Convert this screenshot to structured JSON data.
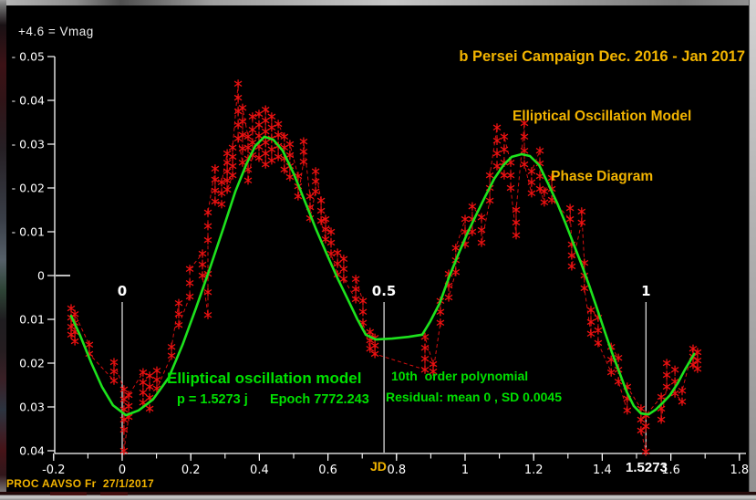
{
  "header": {
    "vmag_note": "+4.6 = Vmag",
    "title1": "b Persei Campaign Dec. 2016 - Jan 2017",
    "title2": "Elliptical Oscillation Model",
    "title3": "Phase Diagram"
  },
  "annotations": {
    "model_title": "Elliptical oscillation model",
    "model_params": "p = 1.5273 j      Epoch 7772.243",
    "poly_title": "10th  order polynomial",
    "poly_residual": "Residual: mean 0 , SD 0.0045"
  },
  "footer": {
    "credit": "PROC AAVSO Fr  27/1/2017"
  },
  "colors": {
    "background": "#000000",
    "title_gold": "#f2b400",
    "annotation_green": "#00e000",
    "model_green": "#1de31d",
    "data_red": "#ee1111",
    "axis_white": "#ffffff"
  },
  "chart_data": {
    "type": "scatter",
    "title": "b Persei Campaign Dec. 2016 - Jan 2017 — Elliptical Oscillation Model — Phase Diagram",
    "xlabel": "JD",
    "ylabel_note": "+4.6 = Vmag",
    "xlim": [
      -0.28,
      1.82
    ],
    "ylim_dmag_top_to_bottom": [
      -0.05,
      0.04
    ],
    "x_minor_step": 0.1,
    "period_label": "1.5273",
    "x_major_ticks": [
      {
        "v": -0.2,
        "label": "-0.2"
      },
      {
        "v": 0,
        "label": "0"
      },
      {
        "v": 0.2,
        "label": "0.2"
      },
      {
        "v": 0.4,
        "label": "0.4"
      },
      {
        "v": 0.6,
        "label": "0.6"
      },
      {
        "v": 0.8,
        "label": "0.8"
      },
      {
        "v": 1,
        "label": "1"
      },
      {
        "v": 1.2,
        "label": "1.2"
      },
      {
        "v": 1.4,
        "label": "1.4"
      },
      {
        "v": 1.6,
        "label": "1.6"
      },
      {
        "v": 1.8,
        "label": "1.8"
      }
    ],
    "y_ticks": [
      {
        "v": -0.05,
        "label": "- 0.05"
      },
      {
        "v": -0.04,
        "label": "- 0.04"
      },
      {
        "v": -0.03,
        "label": "- 0.03"
      },
      {
        "v": -0.02,
        "label": "- 0.02"
      },
      {
        "v": -0.01,
        "label": "- 0.01"
      },
      {
        "v": 0,
        "label": "0"
      },
      {
        "v": 0.01,
        "label": "0.01"
      },
      {
        "v": 0.02,
        "label": "0.02"
      },
      {
        "v": 0.03,
        "label": "0.03"
      },
      {
        "v": 0.04,
        "label": "0.04"
      }
    ],
    "phase_markers": [
      {
        "jd": 0,
        "label": "0"
      },
      {
        "jd": 0.7636,
        "label": "0.5"
      },
      {
        "jd": 1.5273,
        "label": "1"
      }
    ],
    "model_curve": [
      [
        -0.149,
        0.0092
      ],
      [
        -0.122,
        0.0138
      ],
      [
        -0.09,
        0.02
      ],
      [
        -0.059,
        0.0254
      ],
      [
        -0.027,
        0.0296
      ],
      [
        0.011,
        0.0319
      ],
      [
        0.048,
        0.0308
      ],
      [
        0.09,
        0.0283
      ],
      [
        0.136,
        0.0233
      ],
      [
        0.176,
        0.0158
      ],
      [
        0.215,
        0.0075
      ],
      [
        0.255,
        -0.0015
      ],
      [
        0.295,
        -0.0108
      ],
      [
        0.33,
        -0.0192
      ],
      [
        0.362,
        -0.0254
      ],
      [
        0.388,
        -0.0296
      ],
      [
        0.415,
        -0.0317
      ],
      [
        0.441,
        -0.031
      ],
      [
        0.468,
        -0.0285
      ],
      [
        0.5,
        -0.0233
      ],
      [
        0.532,
        -0.0171
      ],
      [
        0.564,
        -0.0108
      ],
      [
        0.596,
        -0.005
      ],
      [
        0.628,
        0.0006
      ],
      [
        0.66,
        0.0058
      ],
      [
        0.686,
        0.01
      ],
      [
        0.71,
        0.0135
      ],
      [
        0.739,
        0.0146
      ],
      [
        0.787,
        0.0144
      ],
      [
        0.835,
        0.014
      ],
      [
        0.875,
        0.0135
      ],
      [
        0.899,
        0.0104
      ],
      [
        0.926,
        0.0063
      ],
      [
        0.952,
        0.0006
      ],
      [
        0.979,
        -0.0046
      ],
      [
        1.005,
        -0.0094
      ],
      [
        1.032,
        -0.0138
      ],
      [
        1.059,
        -0.0181
      ],
      [
        1.085,
        -0.0221
      ],
      [
        1.112,
        -0.0252
      ],
      [
        1.136,
        -0.0271
      ],
      [
        1.165,
        -0.0277
      ],
      [
        1.189,
        -0.0273
      ],
      [
        1.216,
        -0.0252
      ],
      [
        1.242,
        -0.021
      ],
      [
        1.269,
        -0.0165
      ],
      [
        1.293,
        -0.0119
      ],
      [
        1.316,
        -0.0073
      ],
      [
        1.34,
        -0.0025
      ],
      [
        1.362,
        0.0023
      ],
      [
        1.383,
        0.0071
      ],
      [
        1.407,
        0.0127
      ],
      [
        1.428,
        0.0175
      ],
      [
        1.45,
        0.0221
      ],
      [
        1.471,
        0.0265
      ],
      [
        1.492,
        0.0298
      ],
      [
        1.513,
        0.0315
      ],
      [
        1.535,
        0.0317
      ],
      [
        1.556,
        0.0306
      ],
      [
        1.577,
        0.029
      ],
      [
        1.598,
        0.0273
      ],
      [
        1.62,
        0.0246
      ],
      [
        1.641,
        0.0215
      ],
      [
        1.657,
        0.0194
      ],
      [
        1.668,
        0.0179
      ]
    ],
    "observation_columns": [
      {
        "x": -0.149,
        "y": [
          0.0075,
          0.0096,
          0.0117,
          0.0135
        ]
      },
      {
        "x": -0.138,
        "y": [
          0.0088,
          0.0108,
          0.0129,
          0.015
        ]
      },
      {
        "x": -0.096,
        "y": [
          0.0158,
          0.0179
        ]
      },
      {
        "x": -0.024,
        "y": [
          0.0198,
          0.0219,
          0.024
        ]
      },
      {
        "x": 0.005,
        "y": [
          0.026,
          0.0283,
          0.0306,
          0.0329,
          0.0352,
          0.04
        ]
      },
      {
        "x": 0.019,
        "y": [
          0.0273,
          0.0298,
          0.0323
        ]
      },
      {
        "x": 0.061,
        "y": [
          0.0221,
          0.0244,
          0.0267,
          0.029
        ]
      },
      {
        "x": 0.08,
        "y": [
          0.0229,
          0.0254,
          0.0279,
          0.0304
        ]
      },
      {
        "x": 0.101,
        "y": [
          0.0217,
          0.0238,
          0.0258
        ]
      },
      {
        "x": 0.144,
        "y": [
          0.0163,
          0.0183
        ]
      },
      {
        "x": 0.165,
        "y": [
          0.0063,
          0.0088,
          0.0113
        ]
      },
      {
        "x": 0.197,
        "y": [
          -0.0015,
          0.0017,
          0.0048
        ]
      },
      {
        "x": 0.234,
        "y": [
          -0.005,
          -0.0025,
          0.0
        ]
      },
      {
        "x": 0.25,
        "y": [
          -0.0144,
          -0.0113,
          -0.0081,
          -0.0004,
          0.0038,
          0.009
        ]
      },
      {
        "x": 0.271,
        "y": [
          -0.0244,
          -0.0219,
          -0.0194,
          -0.0169
        ]
      },
      {
        "x": 0.29,
        "y": [
          -0.0213,
          -0.0188,
          -0.0163
        ]
      },
      {
        "x": 0.306,
        "y": [
          -0.0279,
          -0.0258,
          -0.0238,
          -0.0217,
          -0.0196
        ]
      },
      {
        "x": 0.322,
        "y": [
          -0.0292,
          -0.0271,
          -0.025,
          -0.0229
        ]
      },
      {
        "x": 0.338,
        "y": [
          -0.0438,
          -0.0406,
          -0.0375,
          -0.0344,
          -0.0313
        ]
      },
      {
        "x": 0.351,
        "y": [
          -0.0383,
          -0.0352,
          -0.0321,
          -0.029,
          -0.0258
        ]
      },
      {
        "x": 0.367,
        "y": [
          -0.0317,
          -0.0292,
          -0.0267,
          -0.0242,
          -0.0217
        ]
      },
      {
        "x": 0.38,
        "y": [
          -0.0363,
          -0.0333,
          -0.0304,
          -0.0275
        ]
      },
      {
        "x": 0.399,
        "y": [
          -0.0369,
          -0.0344,
          -0.0319,
          -0.0294,
          -0.0269
        ]
      },
      {
        "x": 0.418,
        "y": [
          -0.0379,
          -0.0354,
          -0.0329,
          -0.0304,
          -0.0279,
          -0.0254
        ]
      },
      {
        "x": 0.436,
        "y": [
          -0.0363,
          -0.0338,
          -0.0313,
          -0.0288,
          -0.0263
        ]
      },
      {
        "x": 0.455,
        "y": [
          -0.0346,
          -0.0321,
          -0.0296,
          -0.0271
        ]
      },
      {
        "x": 0.473,
        "y": [
          -0.0317,
          -0.0292,
          -0.0267,
          -0.0242
        ]
      },
      {
        "x": 0.489,
        "y": [
          -0.03,
          -0.0275,
          -0.025,
          -0.0225
        ]
      },
      {
        "x": 0.513,
        "y": [
          -0.0227,
          -0.0204,
          -0.0181
        ]
      },
      {
        "x": 0.529,
        "y": [
          -0.0306,
          -0.0283,
          -0.026
        ]
      },
      {
        "x": 0.548,
        "y": [
          -0.0181,
          -0.0156,
          -0.0131
        ]
      },
      {
        "x": 0.564,
        "y": [
          -0.0238,
          -0.0215,
          -0.0192
        ]
      },
      {
        "x": 0.58,
        "y": [
          -0.0171,
          -0.0148,
          -0.0125
        ]
      },
      {
        "x": 0.593,
        "y": [
          -0.0129,
          -0.0106,
          -0.0083
        ]
      },
      {
        "x": 0.609,
        "y": [
          -0.01,
          -0.0075,
          -0.005
        ]
      },
      {
        "x": 0.628,
        "y": [
          -0.0052,
          -0.0027,
          -0.0002
        ]
      },
      {
        "x": 0.646,
        "y": [
          -0.0038,
          -0.0015,
          0.0008
        ]
      },
      {
        "x": 0.681,
        "y": [
          0.0008,
          0.0031,
          0.0054
        ]
      },
      {
        "x": 0.702,
        "y": [
          0.0058,
          0.0083,
          0.0108
        ]
      },
      {
        "x": 0.723,
        "y": [
          0.0129,
          0.0148,
          0.0167
        ]
      },
      {
        "x": 0.737,
        "y": [
          0.0142,
          0.016,
          0.0179
        ]
      },
      {
        "x": 0.883,
        "y": [
          0.014,
          0.0165,
          0.019,
          0.0215
        ]
      },
      {
        "x": 0.907,
        "y": [
          0.0202,
          0.0219
        ]
      },
      {
        "x": 0.928,
        "y": [
          0.0058,
          0.0083,
          0.0108
        ]
      },
      {
        "x": 0.952,
        "y": [
          -0.0004,
          0.0023,
          0.005
        ]
      },
      {
        "x": 0.973,
        "y": [
          -0.0063,
          -0.0035,
          -0.0008
        ]
      },
      {
        "x": 1.0,
        "y": [
          -0.0129,
          -0.01,
          -0.0071
        ]
      },
      {
        "x": 1.021,
        "y": [
          -0.0158,
          -0.0129,
          -0.01
        ]
      },
      {
        "x": 1.048,
        "y": [
          -0.0133,
          -0.0104,
          -0.0075
        ]
      },
      {
        "x": 1.072,
        "y": [
          -0.0229,
          -0.02,
          -0.0171
        ]
      },
      {
        "x": 1.093,
        "y": [
          -0.0338,
          -0.0308,
          -0.0279,
          -0.025
        ]
      },
      {
        "x": 1.114,
        "y": [
          -0.0317,
          -0.0288,
          -0.0258,
          -0.0229
        ]
      },
      {
        "x": 1.133,
        "y": [
          -0.0258,
          -0.0229,
          -0.02
        ]
      },
      {
        "x": 1.149,
        "y": [
          -0.015,
          -0.0121,
          -0.0092
        ]
      },
      {
        "x": 1.173,
        "y": [
          -0.0348,
          -0.0317,
          -0.0285,
          -0.0254
        ]
      },
      {
        "x": 1.194,
        "y": [
          -0.0238,
          -0.0213,
          -0.0188
        ]
      },
      {
        "x": 1.218,
        "y": [
          -0.0285,
          -0.0256,
          -0.0227,
          -0.0198
        ]
      },
      {
        "x": 1.231,
        "y": [
          -0.0192,
          -0.0167
        ]
      },
      {
        "x": 1.253,
        "y": [
          -0.0223,
          -0.0198,
          -0.0173
        ]
      },
      {
        "x": 1.306,
        "y": [
          -0.0154,
          -0.0129
        ]
      },
      {
        "x": 1.311,
        "y": [
          -0.0071,
          -0.0046,
          -0.0021
        ]
      },
      {
        "x": 1.34,
        "y": [
          -0.0146,
          -0.0121
        ]
      },
      {
        "x": 1.348,
        "y": [
          -0.0029,
          0.0,
          0.0029
        ]
      },
      {
        "x": 1.367,
        "y": [
          0.0079,
          0.0106,
          0.0133
        ]
      },
      {
        "x": 1.388,
        "y": [
          0.0096,
          0.0125,
          0.0154
        ]
      },
      {
        "x": 1.426,
        "y": [
          0.0163,
          0.0192,
          0.0221
        ]
      },
      {
        "x": 1.447,
        "y": [
          0.0188,
          0.0215,
          0.0242
        ]
      },
      {
        "x": 1.473,
        "y": [
          0.0254,
          0.0281,
          0.0308
        ]
      },
      {
        "x": 1.513,
        "y": [
          0.0304,
          0.0329,
          0.0354
        ]
      },
      {
        "x": 1.527,
        "y": [
          0.0319,
          0.0344,
          0.0402
        ]
      },
      {
        "x": 1.572,
        "y": [
          0.0277,
          0.0304,
          0.0329
        ]
      },
      {
        "x": 1.588,
        "y": [
          0.02,
          0.0227,
          0.0254
        ]
      },
      {
        "x": 1.612,
        "y": [
          0.0215,
          0.0242,
          0.0269
        ]
      },
      {
        "x": 1.633,
        "y": [
          0.0263,
          0.0288
        ]
      },
      {
        "x": 1.665,
        "y": [
          0.0167,
          0.0185,
          0.0204
        ]
      },
      {
        "x": 1.678,
        "y": [
          0.0175,
          0.0194,
          0.0213
        ]
      }
    ]
  }
}
